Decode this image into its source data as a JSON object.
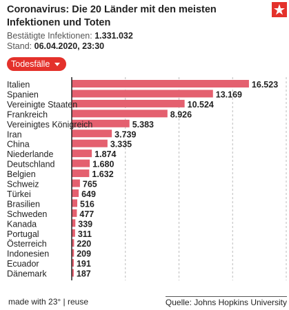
{
  "header": {
    "title": "Coronavirus: Die 20 Länder mit den meisten Infektionen und Toten",
    "confirmed_label": "Bestätigte Infektionen:",
    "confirmed_value": "1.331.032",
    "stand_label": "Stand:",
    "stand_value": "06.04.2020, 23:30",
    "logo_icon": "stern-logo-icon"
  },
  "dropdown": {
    "label": "Todesfälle",
    "icon": "chevron-down-icon"
  },
  "footer": {
    "made_with": "made with 23°",
    "separator": "|",
    "reuse": "reuse",
    "source": "Quelle: Johns Hopkins University"
  },
  "colors": {
    "bar": "#e4606f",
    "accent": "#e4312b",
    "grid": "#bbbbbb",
    "axis": "#222222"
  },
  "chart_data": {
    "type": "bar",
    "orientation": "horizontal",
    "categories": [
      "Italien",
      "Spanien",
      "Vereinigte Staaten",
      "Frankreich",
      "Vereinigtes Königreich",
      "Iran",
      "China",
      "Niederlande",
      "Deutschland",
      "Belgien",
      "Schweiz",
      "Türkei",
      "Brasilien",
      "Schweden",
      "Kanada",
      "Portugal",
      "Österreich",
      "Indonesien",
      "Ecuador",
      "Dänemark"
    ],
    "values": [
      16523,
      13169,
      10524,
      8926,
      5383,
      3739,
      3335,
      1874,
      1680,
      1632,
      765,
      649,
      516,
      477,
      339,
      311,
      220,
      209,
      191,
      187
    ],
    "value_labels": [
      "16.523",
      "13.169",
      "10.524",
      "8.926",
      "5.383",
      "3.739",
      "3.335",
      "1.874",
      "1.680",
      "1.632",
      "765",
      "649",
      "516",
      "477",
      "339",
      "311",
      "220",
      "209",
      "191",
      "187"
    ],
    "xlim": [
      0,
      20000
    ],
    "gridlines": [
      5000,
      10000,
      15000,
      20000
    ],
    "grid": true,
    "title": "",
    "xlabel": "",
    "ylabel": ""
  }
}
